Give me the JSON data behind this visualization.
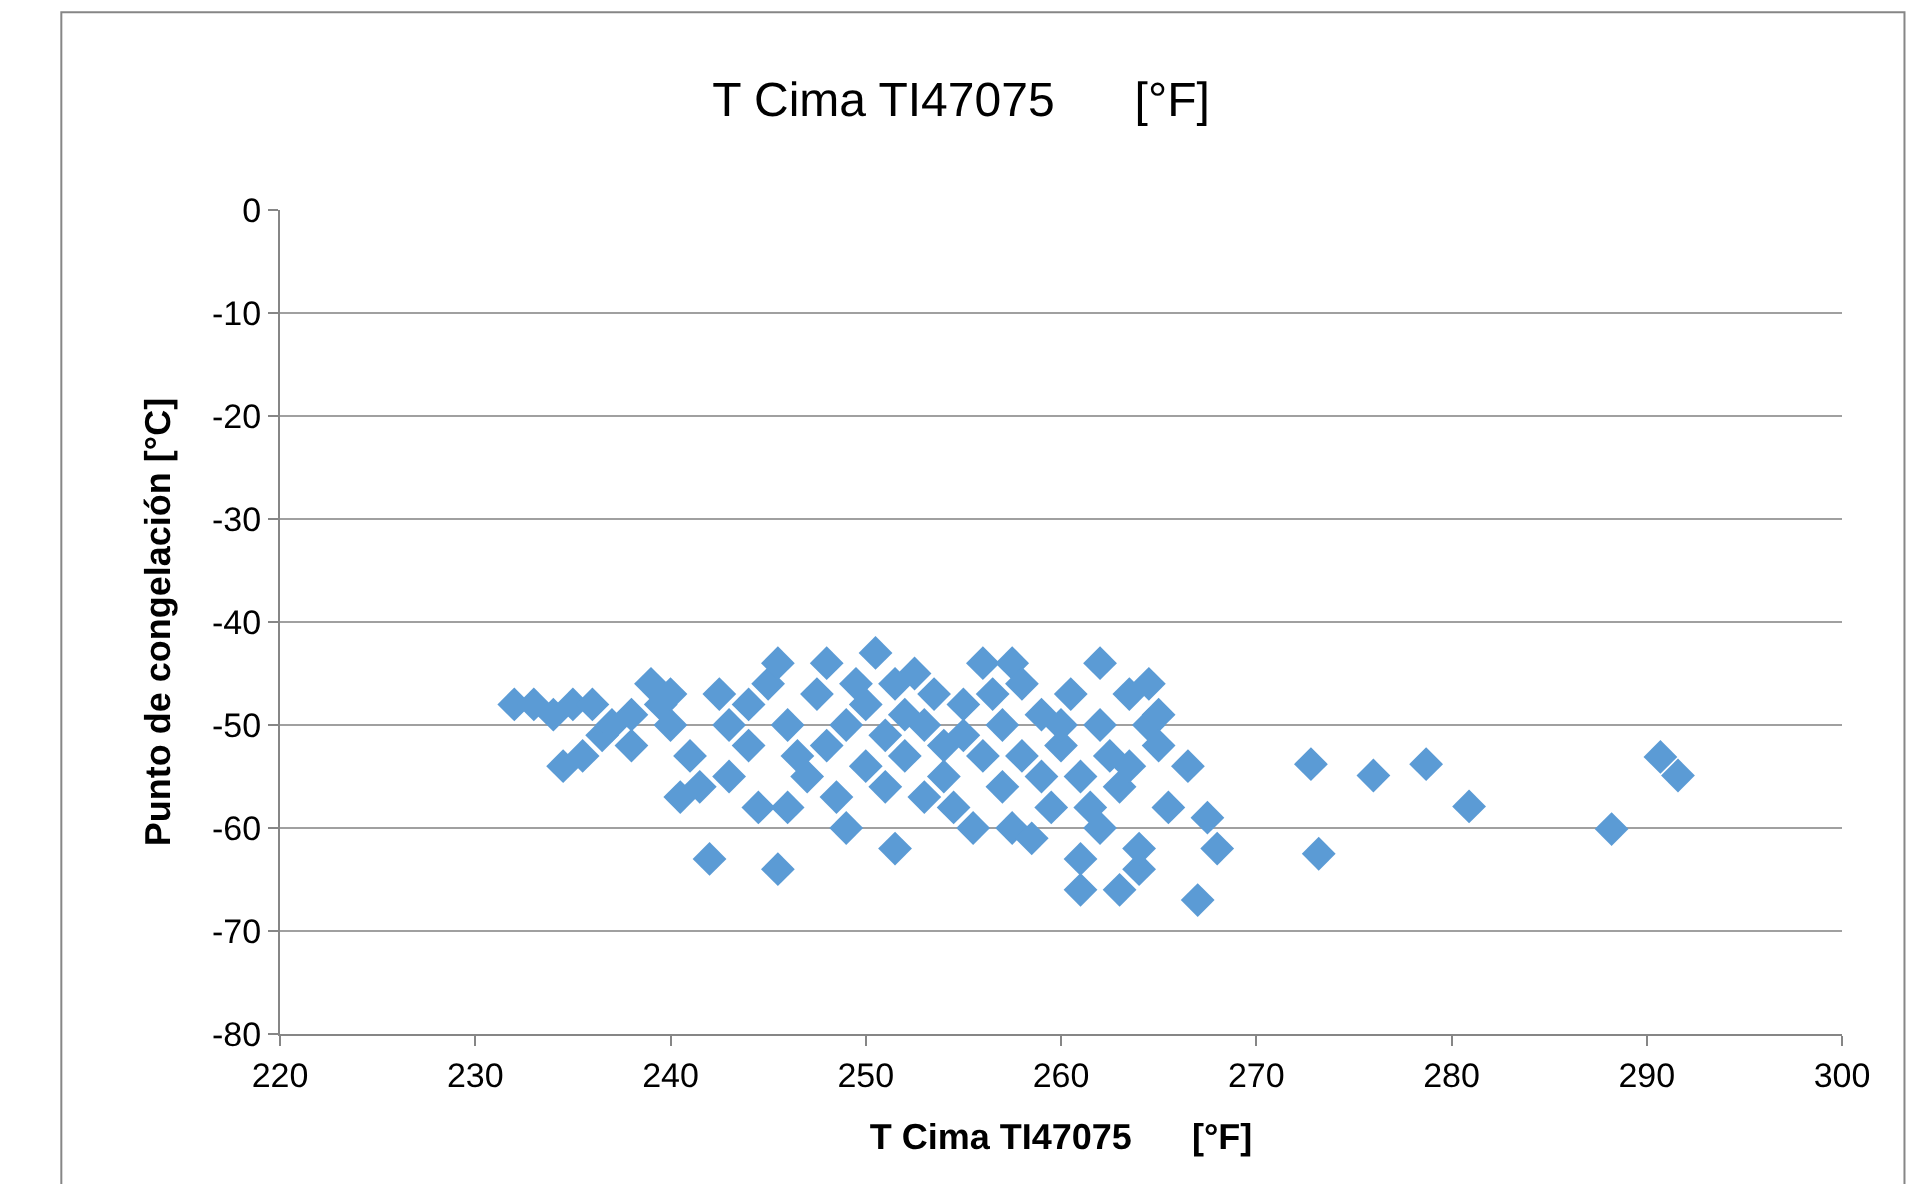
{
  "chart_data": {
    "type": "scatter",
    "title": "T Cima TI47075      [°F]",
    "xlabel": "T Cima TI47075      [°F]",
    "ylabel": "Punto de congelación [°C]",
    "xlim": [
      220,
      300
    ],
    "xticks": [
      220,
      230,
      240,
      250,
      260,
      270,
      280,
      290,
      300
    ],
    "ylim": [
      -80,
      0
    ],
    "yticks": [
      -80,
      -70,
      -60,
      -50,
      -40,
      -30,
      -20,
      -10,
      0
    ],
    "grid": "y",
    "legend": false,
    "marker": "diamond",
    "series": [
      {
        "color": "#5b9bd5",
        "x": [
          232,
          233,
          234,
          235,
          234.5,
          235.5,
          236,
          236.5,
          237,
          238,
          238,
          239,
          239.5,
          240,
          240,
          241,
          240.5,
          241.5,
          242,
          242.5,
          243,
          243,
          244,
          244,
          244.5,
          245,
          245.5,
          245.5,
          246,
          246,
          246.5,
          247,
          247.5,
          248,
          248,
          248.5,
          249,
          249,
          249.5,
          250,
          250,
          250.5,
          251,
          251,
          251.5,
          251.5,
          252,
          252,
          252.5,
          253,
          253,
          253.5,
          254,
          254,
          254.5,
          255,
          255,
          255.5,
          256,
          256,
          256.5,
          257,
          257,
          257.5,
          257.5,
          258,
          258,
          258.5,
          259,
          259,
          259.5,
          260,
          260,
          260.5,
          261,
          261,
          261,
          261.5,
          262,
          262,
          262,
          262.5,
          263,
          263,
          263.5,
          263.5,
          264,
          264,
          264.5,
          264.5,
          265,
          265,
          265.5,
          266.5,
          267,
          267.5,
          268,
          272.8,
          273.2,
          276,
          278.7,
          280.9,
          288.2,
          290.7,
          291.6
        ],
        "values": [
          -48,
          -48,
          -49,
          -48,
          -54,
          -53,
          -48,
          -51,
          -50,
          -52,
          -49,
          -46,
          -48,
          -50,
          -47,
          -53,
          -57,
          -56,
          -63,
          -47,
          -50,
          -55,
          -52,
          -48,
          -58,
          -46,
          -44,
          -64,
          -58,
          -50,
          -53,
          -55,
          -47,
          -44,
          -52,
          -57,
          -50,
          -60,
          -46,
          -54,
          -48,
          -43,
          -51,
          -56,
          -62,
          -46,
          -49,
          -53,
          -45,
          -57,
          -50,
          -47,
          -52,
          -55,
          -58,
          -48,
          -51,
          -60,
          -44,
          -53,
          -47,
          -56,
          -50,
          -44,
          -60,
          -53,
          -46,
          -61,
          -49,
          -55,
          -58,
          -52,
          -50,
          -47,
          -66,
          -63,
          -55,
          -58,
          -44,
          -50,
          -60,
          -53,
          -56,
          -66,
          -47,
          -54,
          -64,
          -62,
          -46,
          -50,
          -49,
          -52,
          -58,
          -54,
          -67,
          -59,
          -62,
          -53.8,
          -62.5,
          -54.9,
          -53.8,
          -57.9,
          -60.1,
          -53.1,
          -54.9
        ]
      }
    ]
  }
}
